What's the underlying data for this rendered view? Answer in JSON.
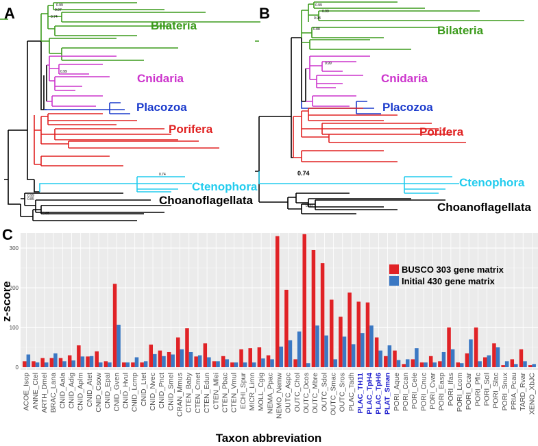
{
  "panels": {
    "a": "A",
    "b": "B",
    "c": "C"
  },
  "tree_a": {
    "clades": [
      {
        "name": "Bilateria",
        "color": "#3a9a1a"
      },
      {
        "name": "Cnidaria",
        "color": "#cc33cc"
      },
      {
        "name": "Placozoa",
        "color": "#1a3acc"
      },
      {
        "name": "Porifera",
        "color": "#e02020"
      },
      {
        "name": "Ctenophora",
        "color": "#22ccee"
      },
      {
        "name": "Choanoflagellata",
        "color": "#000000"
      }
    ],
    "support_labels": [
      "0.99",
      "0.97",
      "0.74",
      "0.99",
      "0.74",
      "0.99",
      "0.85",
      "0.65"
    ]
  },
  "tree_b": {
    "clades": [
      {
        "name": "Bilateria",
        "color": "#3a9a1a"
      },
      {
        "name": "Cnidaria",
        "color": "#cc33cc"
      },
      {
        "name": "Placozoa",
        "color": "#1a3acc"
      },
      {
        "name": "Porifera",
        "color": "#e02020"
      },
      {
        "name": "Ctenophora",
        "color": "#22ccee"
      },
      {
        "name": "Choanoflagellata",
        "color": "#000000"
      }
    ],
    "support_labels": [
      "0.99",
      "0.99",
      "0.98",
      "0.88",
      "0.99",
      "0.74",
      "0.99"
    ]
  },
  "chart_data": {
    "type": "bar",
    "title": "",
    "xlabel": "Taxon abbreviation",
    "ylabel": "z-score",
    "ylim": [
      0,
      345
    ],
    "yticks": [
      0,
      100,
      200,
      300
    ],
    "grid": true,
    "legend_position": "top-right",
    "categories": [
      "ACOE_Isop",
      "ANNE_Ctel",
      "ARTH_Dmel",
      "BRAC_Lana",
      "CNID_Aala",
      "CNID_Adig",
      "CNID_Aplm",
      "CNID_Atet",
      "CNID_Csow",
      "CNID_Epal",
      "CNID_Gven",
      "CNID_Hvul",
      "CNID_Lcmp",
      "CNID_Ltet",
      "CNID_Nvec",
      "CNID_Pnct",
      "CNID_Smel",
      "CRAN_Mmus",
      "CTEN_Baby",
      "CTEN_Cmet",
      "CTEN_Edun",
      "CTEN_Mlei",
      "CTEN_Pbac",
      "CTEN_Vmul",
      "ECHI_Spur",
      "MICR_Limn",
      "MOLL_Cgig",
      "NEMA_Ppac",
      "NEMO_Nemw",
      "OUTC_Aspc",
      "OUTC_Chol",
      "OUTC_Dcos",
      "OUTC_Mbre",
      "OUTC_Sdol",
      "OUTC_Smac",
      "OUTC_Sros",
      "PLAC_Tadh",
      "PLAC_TH11",
      "PLAC_TpH4",
      "PLAC_TpH6",
      "PLAT_Sman",
      "PORI_Aque",
      "PORI_Ccan",
      "PORI_Cele",
      "PORI_Cnuc",
      "PORI_Cvar",
      "PORI_Easp",
      "PORI_Ifas",
      "PORI_Lcom",
      "PORI_Ocar",
      "PORI_Pfic",
      "PORI_Scil",
      "PORI_Slac",
      "PORI_Snux",
      "PRIA_Pcau",
      "TARD_Rvar",
      "XENO_XbJC"
    ],
    "highlight_categories": [
      "PLAC_TH11",
      "PLAC_TpH4",
      "PLAC_TpH6",
      "PLAT_Sman"
    ],
    "highlight_color": "#1a1acc",
    "series": [
      {
        "name": "BUSCO 303 gene matrix",
        "color": "#e02226",
        "values": [
          15,
          15,
          23,
          23,
          23,
          30,
          55,
          27,
          40,
          15,
          210,
          12,
          12,
          12,
          57,
          42,
          38,
          75,
          98,
          27,
          60,
          15,
          28,
          12,
          45,
          48,
          50,
          30,
          330,
          195,
          20,
          335,
          295,
          262,
          170,
          127,
          188,
          165,
          163,
          75,
          28,
          42,
          8,
          20,
          12,
          28,
          15,
          100,
          12,
          35,
          100,
          25,
          60,
          5,
          20,
          45,
          5
        ]
      },
      {
        "name": "Initial 430 gene matrix",
        "color": "#3b78c3",
        "values": [
          32,
          12,
          12,
          35,
          15,
          17,
          27,
          28,
          12,
          12,
          107,
          12,
          25,
          15,
          33,
          28,
          32,
          45,
          38,
          30,
          25,
          15,
          20,
          12,
          12,
          12,
          22,
          20,
          52,
          68,
          90,
          10,
          105,
          80,
          20,
          77,
          58,
          86,
          105,
          42,
          55,
          18,
          20,
          48,
          12,
          12,
          38,
          45,
          10,
          70,
          15,
          30,
          50,
          15,
          8,
          15,
          8
        ]
      }
    ]
  }
}
